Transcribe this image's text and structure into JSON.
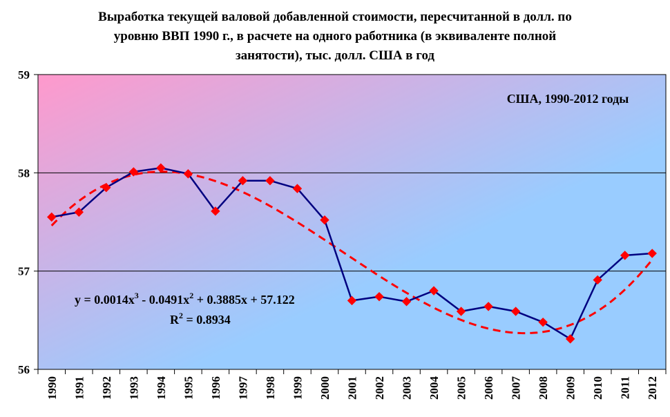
{
  "chart_data": {
    "type": "line",
    "title_lines": [
      "Выработка текущей валовой добавленной стоимости, пересчитанной в долл. по",
      "уровню ВВП 1990 г., в расчете на одного работника (в эквиваленте полной",
      "занятости), тыс. долл. США в год"
    ],
    "annotation": "США, 1990-2012 годы",
    "categories": [
      "1990",
      "1991",
      "1992",
      "1993",
      "1994",
      "1995",
      "1996",
      "1997",
      "1998",
      "1999",
      "2000",
      "2001",
      "2002",
      "2003",
      "2004",
      "2005",
      "2006",
      "2007",
      "2008",
      "2009",
      "2010",
      "2011",
      "2012"
    ],
    "series": [
      {
        "name": "Выработка",
        "color": "#000080",
        "marker_color": "#ff0000",
        "values": [
          57.55,
          57.6,
          57.85,
          58.01,
          58.05,
          57.99,
          57.61,
          57.92,
          57.92,
          57.84,
          57.52,
          56.7,
          56.74,
          56.69,
          56.8,
          56.59,
          56.64,
          56.59,
          56.48,
          56.31,
          56.91,
          57.16,
          57.18
        ]
      }
    ],
    "trendline": {
      "type": "polynomial",
      "color": "#ff0000",
      "coefficients": {
        "a3": 0.0014,
        "a2": -0.0491,
        "a1": 0.3885,
        "a0": 57.122
      },
      "equation_parts": [
        "y = 0.0014x",
        "3",
        " - 0.0491x",
        "2",
        " + 0.3885x + 57.122"
      ],
      "r2_parts": [
        "R",
        "2",
        " = 0.8934"
      ]
    },
    "ylim": [
      56,
      59
    ],
    "yticks": [
      "56",
      "57",
      "58",
      "59"
    ],
    "gridlines": true,
    "xlabel": "",
    "ylabel": "",
    "background_gradient": [
      "#ff99cc",
      "#99ccff"
    ]
  }
}
